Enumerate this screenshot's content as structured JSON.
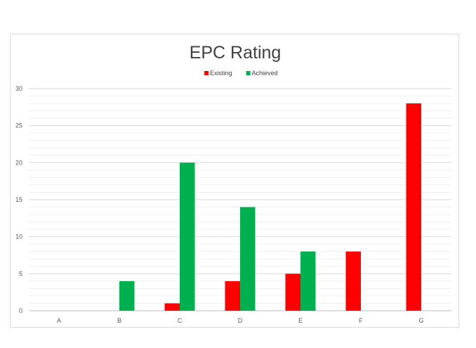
{
  "chart_data": {
    "type": "bar",
    "title": "EPC Rating",
    "xlabel": "",
    "ylabel": "",
    "categories": [
      "A",
      "B",
      "C",
      "D",
      "E",
      "F",
      "G"
    ],
    "series": [
      {
        "name": "Existing",
        "color": "#ff0000",
        "values": [
          0,
          0,
          1,
          4,
          5,
          8,
          28
        ]
      },
      {
        "name": "Achieved",
        "color": "#00b050",
        "values": [
          0,
          4,
          20,
          14,
          8,
          0,
          0
        ]
      }
    ],
    "ylim": [
      0,
      30
    ],
    "yticks": [
      0,
      5,
      10,
      15,
      20,
      25,
      30
    ],
    "grid": true,
    "minor_grid": true,
    "legend_position": "top"
  }
}
